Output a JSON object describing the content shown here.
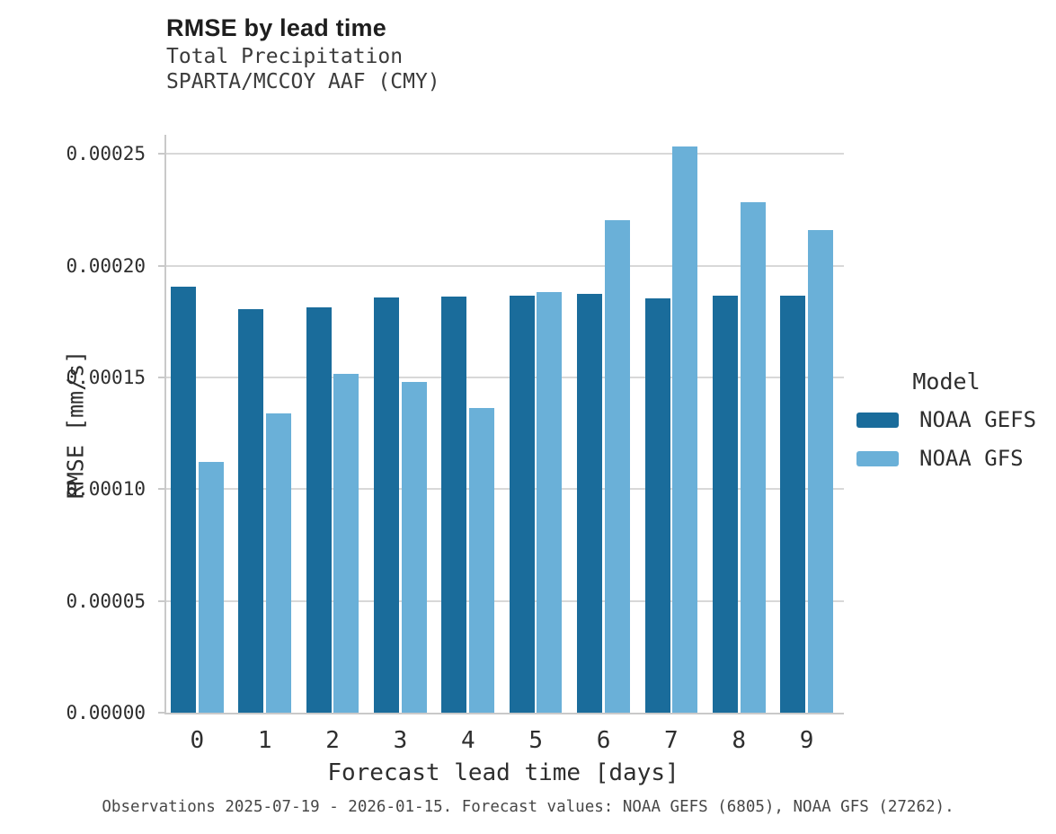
{
  "chart_data": {
    "type": "bar",
    "title": "RMSE by lead time",
    "subtitle_line1": "Total Precipitation",
    "subtitle_line2": "SPARTA/MCCOY AAF (CMY)",
    "xlabel": "Forecast lead time [days]",
    "ylabel": "RMSE [mm/s]",
    "categories": [
      "0",
      "1",
      "2",
      "3",
      "4",
      "5",
      "6",
      "7",
      "8",
      "9"
    ],
    "series": [
      {
        "name": "NOAA GEFS",
        "color": "#1a6c9b",
        "values": [
          0.0001905,
          0.0001805,
          0.0001815,
          0.0001858,
          0.0001862,
          0.0001866,
          0.0001874,
          0.0001852,
          0.0001866,
          0.0001866
        ]
      },
      {
        "name": "NOAA GFS",
        "color": "#6ab0d8",
        "values": [
          0.0001122,
          0.0001338,
          0.0001515,
          0.0001479,
          0.0001363,
          0.0001881,
          0.0002202,
          0.0002532,
          0.0002282,
          0.000216
        ]
      }
    ],
    "ylim": [
      0,
      0.0002585
    ],
    "yticks": [
      0,
      5e-05,
      0.0001,
      0.00015,
      0.0002,
      0.00025
    ],
    "ytick_labels": [
      "0.00000",
      "0.00005",
      "0.00010",
      "0.00015",
      "0.00020",
      "0.00025"
    ],
    "grid": "horizontal-major-only",
    "legend": {
      "position": "right",
      "title": "Model"
    },
    "caption": "Observations 2025-07-19 - 2026-01-15. Forecast values: NOAA GEFS (6805), NOAA GFS (27262)."
  },
  "palette": {
    "gridline": "#d8d8d8",
    "axis_line": "#c9c9c9",
    "title_text": "#1e1e1e",
    "subtitle_text": "#3b3b3b",
    "tick_text": "#2e2e2e",
    "caption_text": "#474747"
  }
}
